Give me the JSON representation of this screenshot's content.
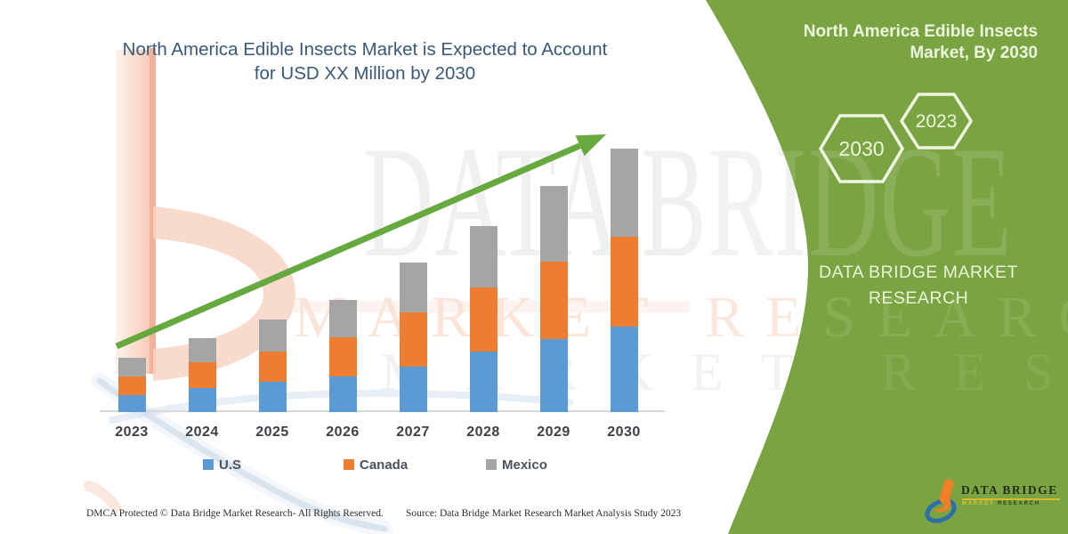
{
  "header": {
    "title_line1": "North America Edible Insects Market is Expected to Account",
    "title_line2": "for USD XX Million by 2030",
    "title_color": "#3a5878"
  },
  "watermark": {
    "line1": "DATA BRIDGE",
    "line2": "MARKET RESEARCH",
    "line3": "MARKET RESEARCH"
  },
  "green_panel": {
    "background_color": "#7aa441",
    "title_line1": "North America Edible Insects",
    "title_line2": "Market, By 2030",
    "hexagons": [
      {
        "label": "2030"
      },
      {
        "label": "2023"
      }
    ],
    "brand_line1": "DATA BRIDGE MARKET",
    "brand_line2": "RESEARCH",
    "logo": {
      "name": "DATA BRIDGE",
      "subtitle_word1": "MARKET",
      "subtitle_word2": "RESEARCH"
    }
  },
  "footer": {
    "left": "DMCA Protected © Data Bridge Market Research-  All Rights Reserved.",
    "right": "Source: Data Bridge Market Research  Market Analysis Study 2023"
  },
  "chart_data": {
    "type": "bar",
    "stacked": true,
    "title": "North America Edible Insects Market is Expected to Account for USD XX Million by 2030",
    "categories": [
      "2023",
      "2024",
      "2025",
      "2026",
      "2027",
      "2028",
      "2029",
      "2030"
    ],
    "series": [
      {
        "name": "U.S",
        "color": "#5b9bd5",
        "values": [
          19,
          27,
          34,
          40,
          51,
          68,
          82,
          96
        ]
      },
      {
        "name": "Canada",
        "color": "#ed7d31",
        "values": [
          21,
          29,
          34,
          44,
          61,
          72,
          87,
          101
        ]
      },
      {
        "name": "Mexico",
        "color": "#a5a5a5",
        "values": [
          21,
          27,
          36,
          42,
          56,
          69,
          85,
          99
        ]
      }
    ],
    "value_axis": "hidden (relative units, market value USD XX Million not disclosed)",
    "ylim": [
      0,
      300
    ],
    "gridlines": false,
    "legend_position": "bottom",
    "trend_arrow_color": "#66a93f",
    "xlabel": "",
    "ylabel": ""
  }
}
